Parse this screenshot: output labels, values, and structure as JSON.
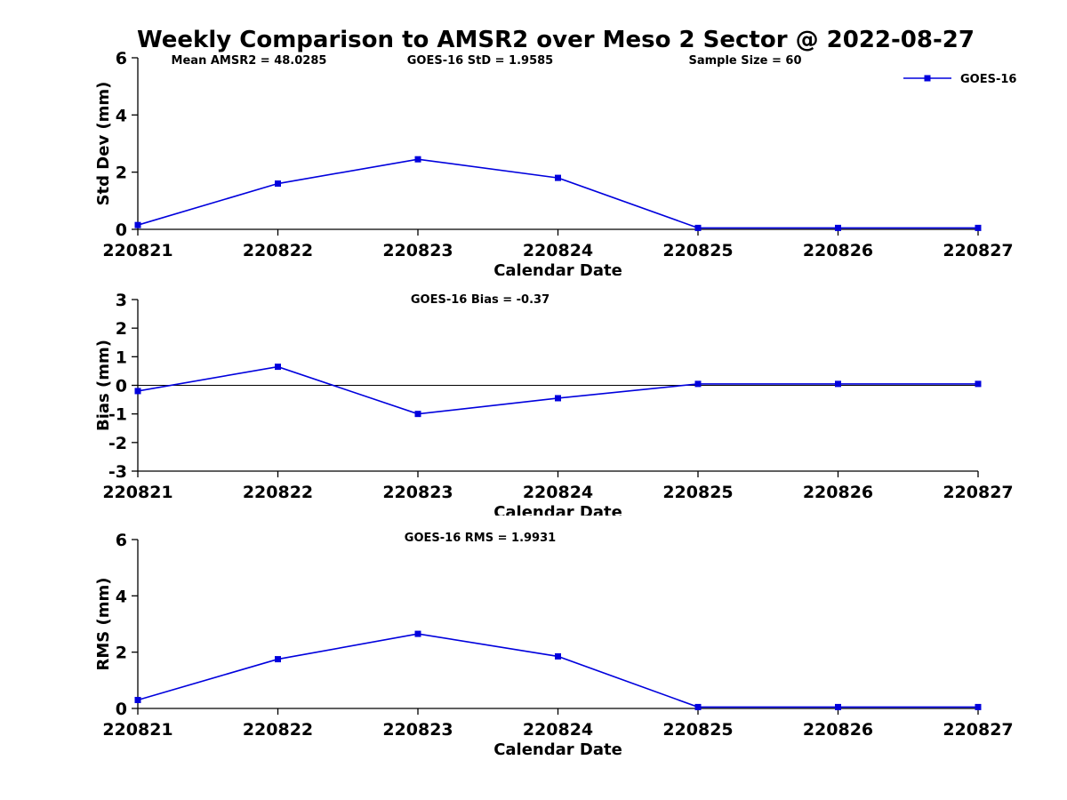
{
  "title": "Weekly Comparison to AMSR2 over Meso 2 Sector @ 2022-08-27",
  "axis_color": "#000000",
  "chart_data": [
    {
      "type": "line",
      "name": "std-dev",
      "annotations": [
        "Mean AMSR2 = 48.0285",
        "GOES-16 StD = 1.9585",
        "Sample Size = 60"
      ],
      "categories": [
        "220821",
        "220822",
        "220823",
        "220824",
        "220825",
        "220826",
        "220827"
      ],
      "series": [
        {
          "name": "GOES-16",
          "color": "#0000dd",
          "marker": "square",
          "values": [
            0.15,
            1.6,
            2.45,
            1.8,
            0.05,
            0.05,
            0.05
          ]
        }
      ],
      "xlabel": "Calendar Date",
      "ylabel": "Std Dev (mm)",
      "ylim": [
        0,
        6
      ],
      "yticks": [
        0,
        2,
        4,
        6
      ],
      "zero_line": false,
      "grid": false,
      "legend": {
        "show": true,
        "label": "GOES-16",
        "position": "top-right"
      }
    },
    {
      "type": "line",
      "name": "bias",
      "annotations": [
        "GOES-16 Bias  = -0.37"
      ],
      "categories": [
        "220821",
        "220822",
        "220823",
        "220824",
        "220825",
        "220826",
        "220827"
      ],
      "series": [
        {
          "name": "GOES-16",
          "color": "#0000dd",
          "marker": "square",
          "values": [
            -0.2,
            0.65,
            -1.0,
            -0.45,
            0.05,
            0.05,
            0.05
          ]
        }
      ],
      "xlabel": "Calendar Date",
      "ylabel": "Bias (mm)",
      "ylim": [
        -3,
        3
      ],
      "yticks": [
        -3,
        -2,
        -1,
        0,
        1,
        2,
        3
      ],
      "zero_line": true,
      "grid": false,
      "legend": {
        "show": false
      }
    },
    {
      "type": "line",
      "name": "rms",
      "annotations": [
        "GOES-16 RMS = 1.9931"
      ],
      "categories": [
        "220821",
        "220822",
        "220823",
        "220824",
        "220825",
        "220826",
        "220827"
      ],
      "series": [
        {
          "name": "GOES-16",
          "color": "#0000dd",
          "marker": "square",
          "values": [
            0.3,
            1.75,
            2.65,
            1.85,
            0.05,
            0.05,
            0.05
          ]
        }
      ],
      "xlabel": "Calendar Date",
      "ylabel": "RMS (mm)",
      "ylim": [
        0,
        6
      ],
      "yticks": [
        0,
        2,
        4,
        6
      ],
      "zero_line": false,
      "grid": false,
      "legend": {
        "show": false
      }
    }
  ]
}
